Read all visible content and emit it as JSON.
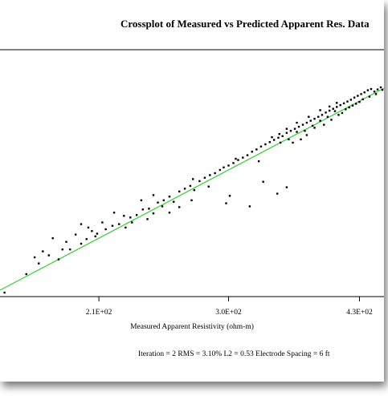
{
  "chart_data": {
    "type": "scatter",
    "title": "Crossplot of Measured vs Predicted Apparent Res. Data",
    "xlabel": "Measured Apparent Resistivity (ohm-m)",
    "ylabel": "",
    "x_scale": "log",
    "y_scale": "log",
    "xlim": [
      160,
      460
    ],
    "ylim": [
      160,
      460
    ],
    "x_ticks": [
      {
        "value": 210,
        "label": "2.1E+02"
      },
      {
        "value": 300,
        "label": "3.0E+02"
      },
      {
        "value": 430,
        "label": "4.3E+02"
      }
    ],
    "grid": false,
    "legend": "none",
    "fit_line": {
      "x": [
        160,
        460
      ],
      "y": [
        160,
        460
      ],
      "color": "#33cc33"
    },
    "series": [
      {
        "color": "#000000",
        "points": [
          [
            162,
            158
          ],
          [
            172,
            174
          ],
          [
            178,
            184
          ],
          [
            183,
            192
          ],
          [
            185,
            210
          ],
          [
            188,
            188
          ],
          [
            192,
            206
          ],
          [
            194,
            198
          ],
          [
            197,
            214
          ],
          [
            200,
            204
          ],
          [
            203,
            209
          ],
          [
            206,
            218
          ],
          [
            209,
            215
          ],
          [
            214,
            220
          ],
          [
            218,
            224
          ],
          [
            222,
            226
          ],
          [
            226,
            222
          ],
          [
            229,
            234
          ],
          [
            233,
            237
          ],
          [
            237,
            244
          ],
          [
            241,
            245
          ],
          [
            244,
            239
          ],
          [
            247,
            253
          ],
          [
            251,
            256
          ],
          [
            255,
            261
          ],
          [
            258,
            254
          ],
          [
            262,
            268
          ],
          [
            266,
            272
          ],
          [
            270,
            276
          ],
          [
            273,
            270
          ],
          [
            277,
            283
          ],
          [
            281,
            288
          ],
          [
            285,
            292
          ],
          [
            289,
            295
          ],
          [
            293,
            300
          ],
          [
            296,
            304
          ],
          [
            300,
            307
          ],
          [
            304,
            311
          ],
          [
            308,
            316
          ],
          [
            312,
            320
          ],
          [
            316,
            324
          ],
          [
            320,
            330
          ],
          [
            324,
            334
          ],
          [
            328,
            339
          ],
          [
            332,
            343
          ],
          [
            336,
            347
          ],
          [
            340,
            351
          ],
          [
            344,
            355
          ],
          [
            348,
            358
          ],
          [
            352,
            364
          ],
          [
            356,
            368
          ],
          [
            360,
            372
          ],
          [
            364,
            376
          ],
          [
            368,
            380
          ],
          [
            372,
            384
          ],
          [
            376,
            388
          ],
          [
            380,
            392
          ],
          [
            384,
            396
          ],
          [
            388,
            400
          ],
          [
            392,
            405
          ],
          [
            396,
            409
          ],
          [
            400,
            413
          ],
          [
            404,
            417
          ],
          [
            408,
            421
          ],
          [
            412,
            425
          ],
          [
            416,
            429
          ],
          [
            420,
            433
          ],
          [
            424,
            438
          ],
          [
            428,
            442
          ],
          [
            432,
            446
          ],
          [
            436,
            450
          ],
          [
            440,
            455
          ],
          [
            444,
            458
          ],
          [
            448,
            452
          ],
          [
            452,
            457
          ],
          [
            456,
            462
          ],
          [
            358,
            346
          ],
          [
            366,
            352
          ],
          [
            372,
            360
          ],
          [
            380,
            374
          ],
          [
            390,
            380
          ],
          [
            398,
            390
          ],
          [
            406,
            400
          ],
          [
            414,
            412
          ],
          [
            422,
            420
          ],
          [
            430,
            428
          ],
          [
            345,
            362
          ],
          [
            352,
            372
          ],
          [
            362,
            384
          ],
          [
            374,
            396
          ],
          [
            386,
            410
          ],
          [
            396,
            418
          ],
          [
            404,
            426
          ],
          [
            298,
            252
          ],
          [
            301,
            262
          ],
          [
            318,
            248
          ],
          [
            330,
            282
          ],
          [
            343,
            265
          ],
          [
            352,
            274
          ],
          [
            271,
            256
          ],
          [
            255,
            240
          ],
          [
            240,
            232
          ],
          [
            225,
            236
          ],
          [
            212,
            228
          ],
          [
            219,
            240
          ],
          [
            244,
            263
          ],
          [
            262,
            247
          ],
          [
            236,
            256
          ],
          [
            204,
            222
          ],
          [
            200,
            226
          ],
          [
            190,
            198
          ],
          [
            180,
            196
          ],
          [
            176,
            190
          ],
          [
            208,
            212
          ],
          [
            230,
            228
          ],
          [
            250,
            248
          ],
          [
            272,
            286
          ],
          [
            284,
            275
          ],
          [
            306,
            318
          ],
          [
            326,
            314
          ],
          [
            338,
            356
          ],
          [
            346,
            346
          ],
          [
            354,
            352
          ],
          [
            362,
            366
          ],
          [
            370,
            368
          ],
          [
            378,
            378
          ],
          [
            386,
            388
          ],
          [
            394,
            396
          ],
          [
            402,
            408
          ],
          [
            410,
            404
          ],
          [
            418,
            416
          ],
          [
            426,
            424
          ],
          [
            434,
            434
          ],
          [
            442,
            440
          ],
          [
            450,
            446
          ],
          [
            458,
            456
          ]
        ]
      }
    ],
    "footer": "Iteration = 2   RMS = 3.10%   L2 = 0.53   Electrode Spacing = 6 ft"
  }
}
